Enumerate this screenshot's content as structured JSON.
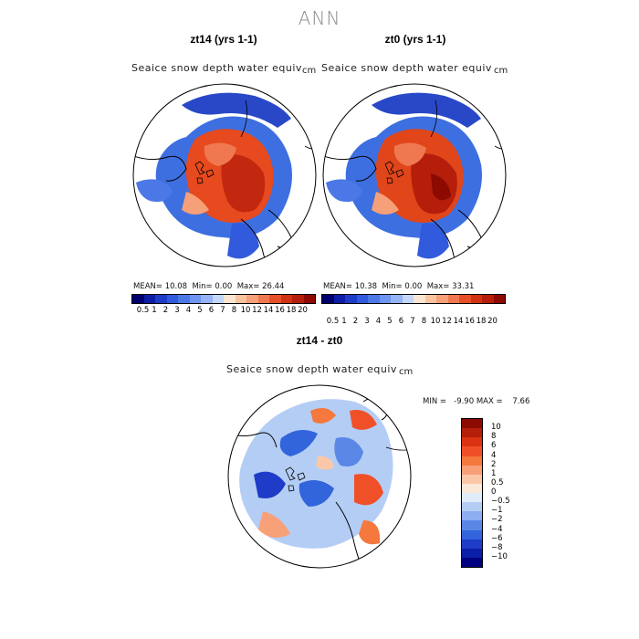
{
  "title": "ANN",
  "panels": [
    {
      "title": "zt14 (yrs 1-1)",
      "variable": "Seaice snow depth water equiv",
      "units": "cm",
      "stats": {
        "mean_label": "MEAN=",
        "mean": "10.08",
        "min_label": "Min=",
        "min": "0.00",
        "max_label": "Max=",
        "max": "26.44"
      }
    },
    {
      "title": "zt0 (yrs 1-1)",
      "variable": "Seaice snow depth water equiv",
      "units": "cm",
      "stats": {
        "mean_label": "MEAN=",
        "mean": "10.38",
        "min_label": "Min=",
        "min": "0.00",
        "max_label": "Max=",
        "max": "33.31"
      }
    }
  ],
  "top_colorbar": {
    "labels": [
      "0.5",
      "1",
      "2",
      "3",
      "4",
      "5",
      "6",
      "7",
      "8",
      "10",
      "12",
      "14",
      "16",
      "18",
      "20"
    ],
    "colors": [
      "#00006e",
      "#0d1ea5",
      "#1e3cc8",
      "#325adc",
      "#4b78e6",
      "#6e96f0",
      "#96b4f5",
      "#c3d7fa",
      "#fae6d2",
      "#fac3a0",
      "#f5a078",
      "#f07850",
      "#e65028",
      "#d23214",
      "#b41e0a",
      "#8c0a00"
    ]
  },
  "diff": {
    "title": "zt14 - zt0",
    "variable": "Seaice snow depth water equiv",
    "units": "cm",
    "minmax_label": "MIN =   -9.90 MAX =    7.66",
    "colorbar_labels": [
      "10",
      "8",
      "6",
      "4",
      "2",
      "1",
      "0.5",
      "0",
      "−0.5",
      "−1",
      "−2",
      "−4",
      "−6",
      "−8",
      "−10"
    ],
    "colorbar_colors": [
      "#8c0a00",
      "#b41e0a",
      "#dc3214",
      "#f05028",
      "#f5783c",
      "#f8a078",
      "#fac8a8",
      "#fae8d8",
      "#e0ecfa",
      "#b4cdf5",
      "#8cadf0",
      "#5a87e6",
      "#3264dc",
      "#1e3cc8",
      "#0a1eaa",
      "#000080"
    ]
  }
}
